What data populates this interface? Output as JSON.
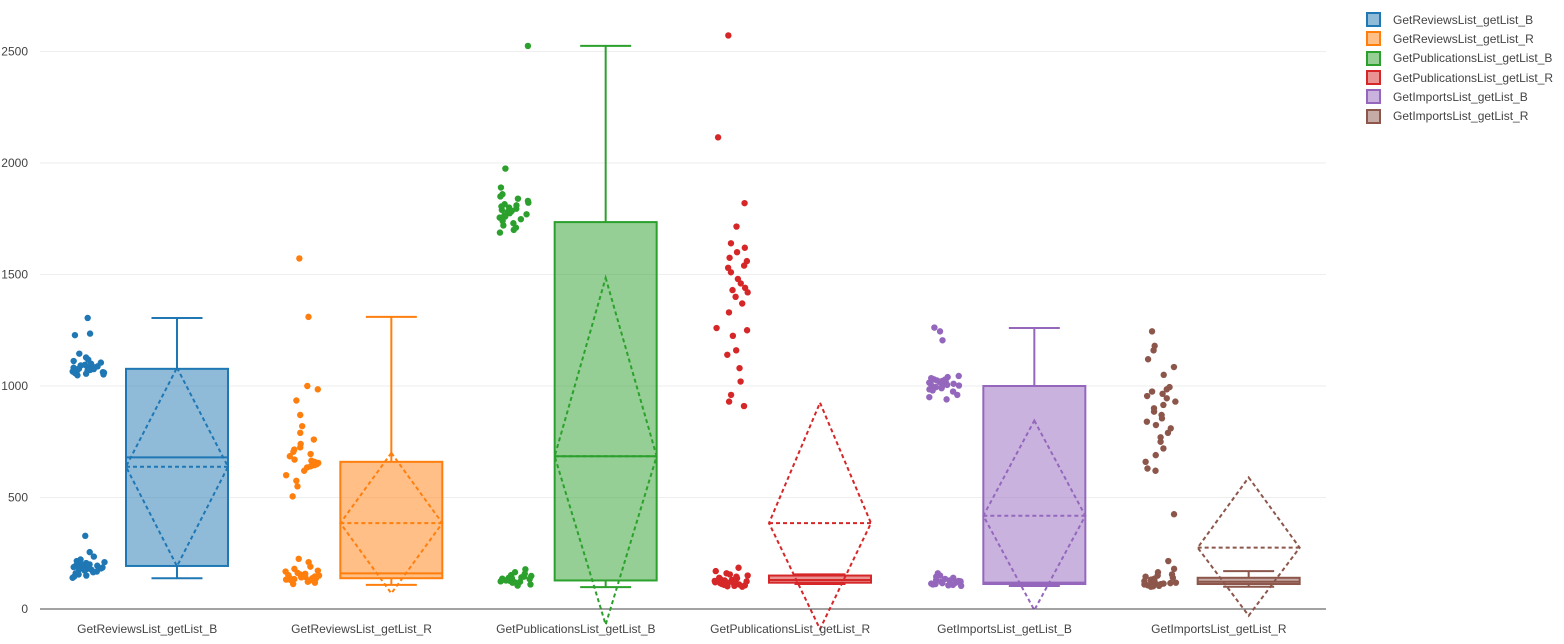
{
  "chart_data": {
    "type": "box",
    "title": "",
    "xlabel": "",
    "ylabel": "",
    "ylim": [
      0,
      2600
    ],
    "yticks": [
      0,
      500,
      1000,
      1500,
      2000,
      2500
    ],
    "grid": true,
    "legend_position": "top-right",
    "categories": [
      "GetReviewsList_getList_B",
      "GetReviewsList_getList_R",
      "GetPublicationsList_getList_B",
      "GetPublicationsList_getList_R",
      "GetImportsList_getList_B",
      "GetImportsList_getList_R"
    ],
    "series": [
      {
        "name": "GetReviewsList_getList_B",
        "color": "#1f77b4",
        "min": 138,
        "q1": 193,
        "median": 680,
        "q3": 1077,
        "max": 1305,
        "mean": 638,
        "mean_minus_sd": 192,
        "mean_plus_sd": 1082,
        "points_upper": [
          1305,
          1235,
          1228,
          1145,
          1128,
          1118,
          1112,
          1105,
          1100,
          1095,
          1092,
          1088,
          1085,
          1082,
          1080,
          1078,
          1076,
          1074,
          1072,
          1070,
          1068,
          1065,
          1062,
          1060,
          1058,
          1055,
          1052,
          1048
        ],
        "points_lower": [
          328,
          255,
          235,
          222,
          215,
          210,
          206,
          202,
          200,
          198,
          196,
          194,
          192,
          190,
          188,
          186,
          184,
          182,
          180,
          178,
          176,
          172,
          168,
          165,
          160,
          155,
          150,
          145,
          140
        ]
      },
      {
        "name": "GetReviewsList_getList_R",
        "color": "#ff7f0e",
        "min": 108,
        "q1": 138,
        "median": 160,
        "q3": 660,
        "max": 1310,
        "mean": 385,
        "mean_minus_sd": 70,
        "mean_plus_sd": 700,
        "points_upper": [
          1572,
          1310,
          1000,
          985,
          935,
          870,
          820,
          790,
          760,
          740,
          725,
          715,
          705,
          695,
          685,
          670,
          665,
          660,
          655,
          650,
          645,
          640,
          635,
          620,
          600,
          575,
          550,
          505
        ],
        "points_lower": [
          225,
          210,
          190,
          180,
          172,
          168,
          162,
          158,
          155,
          152,
          150,
          148,
          146,
          144,
          142,
          140,
          138,
          136,
          134,
          132,
          130,
          128,
          126,
          122,
          118,
          112
        ]
      },
      {
        "name": "GetPublicationsList_getList_B",
        "color": "#2ca02c",
        "min": 98,
        "q1": 128,
        "median": 685,
        "q3": 1735,
        "max": 2525,
        "mean": 685,
        "mean_minus_sd": -70,
        "mean_plus_sd": 1485,
        "points_upper": [
          2525,
          1975,
          1890,
          1860,
          1850,
          1840,
          1830,
          1822,
          1815,
          1810,
          1805,
          1800,
          1795,
          1790,
          1785,
          1780,
          1775,
          1770,
          1765,
          1760,
          1755,
          1748,
          1740,
          1730,
          1720,
          1710,
          1700,
          1688
        ],
        "points_lower": [
          178,
          165,
          158,
          152,
          148,
          145,
          142,
          140,
          138,
          136,
          134,
          132,
          130,
          128,
          126,
          124,
          122,
          120,
          118,
          115,
          110,
          105
        ]
      },
      {
        "name": "GetPublicationsList_getList_R",
        "color": "#d62728",
        "min": 112,
        "q1": 118,
        "median": 130,
        "q3": 150,
        "max": 155,
        "mean": 385,
        "mean_minus_sd": -90,
        "mean_plus_sd": 925,
        "points_upper": [
          2572,
          2115,
          1820,
          1715,
          1640,
          1620,
          1600,
          1575,
          1560,
          1540,
          1530,
          1510,
          1480,
          1460,
          1440,
          1430,
          1420,
          1400,
          1370,
          1330,
          1260,
          1250,
          1225,
          1160,
          1140,
          1080,
          1020,
          960,
          930,
          910
        ],
        "points_lower": [
          185,
          170,
          160,
          155,
          150,
          145,
          140,
          138,
          135,
          132,
          130,
          128,
          126,
          124,
          122,
          120,
          118,
          116,
          114,
          112,
          110,
          108,
          106,
          104,
          102,
          100
        ]
      },
      {
        "name": "GetImportsList_getList_B",
        "color": "#9467bd",
        "min": 103,
        "q1": 112,
        "median": 118,
        "q3": 1000,
        "max": 1260,
        "mean": 418,
        "mean_minus_sd": -5,
        "mean_plus_sd": 845,
        "points_upper": [
          1262,
          1245,
          1205,
          1045,
          1040,
          1035,
          1030,
          1028,
          1025,
          1022,
          1020,
          1018,
          1015,
          1012,
          1010,
          1008,
          1005,
          1002,
          1000,
          998,
          995,
          990,
          985,
          980,
          975,
          960,
          950,
          940
        ],
        "points_lower": [
          160,
          150,
          145,
          140,
          135,
          130,
          128,
          126,
          124,
          122,
          120,
          118,
          116,
          114,
          112,
          110,
          108,
          106,
          104
        ]
      },
      {
        "name": "GetImportsList_getList_R",
        "color": "#8c564b",
        "min": 100,
        "q1": 112,
        "median": 122,
        "q3": 140,
        "max": 170,
        "mean": 275,
        "mean_minus_sd": -30,
        "mean_plus_sd": 590,
        "points_upper": [
          1245,
          1180,
          1160,
          1120,
          1085,
          1050,
          995,
          985,
          975,
          965,
          955,
          945,
          930,
          915,
          900,
          885,
          870,
          855,
          840,
          825,
          810,
          790,
          770,
          750,
          720,
          690,
          660,
          630,
          620,
          425,
          215
        ],
        "points_lower": [
          180,
          165,
          155,
          150,
          145,
          140,
          136,
          132,
          128,
          125,
          122,
          120,
          118,
          116,
          114,
          112,
          110,
          108,
          106,
          104,
          102,
          100
        ]
      }
    ]
  }
}
